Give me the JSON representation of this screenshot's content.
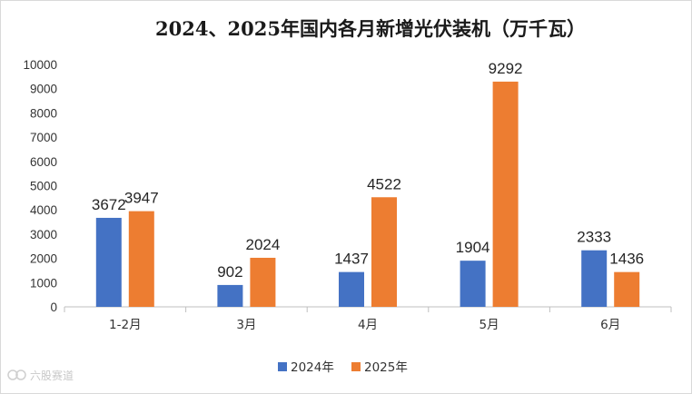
{
  "chart_data": {
    "type": "bar",
    "title": "2024、2025年国内各月新增光伏装机（万千瓦）",
    "categories": [
      "1-2月",
      "3月",
      "4月",
      "5月",
      "6月"
    ],
    "series": [
      {
        "name": "2024年",
        "color": "#4472C4",
        "values": [
          3672,
          902,
          1437,
          1904,
          2333
        ]
      },
      {
        "name": "2025年",
        "color": "#ED7D31",
        "values": [
          3947,
          2024,
          4522,
          9292,
          1436
        ]
      }
    ],
    "ylim": [
      0,
      10000
    ],
    "yticks": [
      0,
      1000,
      2000,
      3000,
      4000,
      5000,
      6000,
      7000,
      8000,
      9000,
      10000
    ],
    "xlabel": "",
    "ylabel": "",
    "grid": false,
    "legend": "bottom-center",
    "data_labels": true
  },
  "watermark": "六股赛道"
}
